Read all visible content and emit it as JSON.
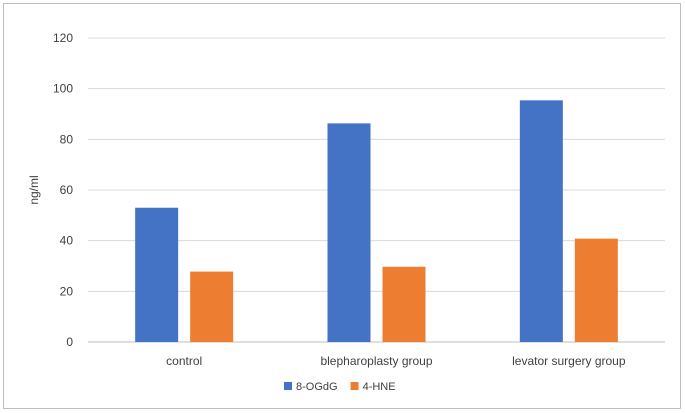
{
  "chart_data": {
    "type": "bar",
    "categories": [
      "control",
      "blepharoplasty group",
      "levator surgery group"
    ],
    "series": [
      {
        "name": "8-OGdG",
        "values": [
          53,
          86.3,
          95.4
        ],
        "color": "#4472c4"
      },
      {
        "name": "4-HNE",
        "values": [
          27.8,
          29.7,
          40.8
        ],
        "color": "#ed7d31"
      }
    ],
    "ylabel": "ng/ml",
    "xlabel": "",
    "ylim": [
      0,
      120
    ],
    "yticks": [
      0,
      20,
      40,
      60,
      80,
      100,
      120
    ],
    "grid": true,
    "legend_position": "bottom"
  }
}
